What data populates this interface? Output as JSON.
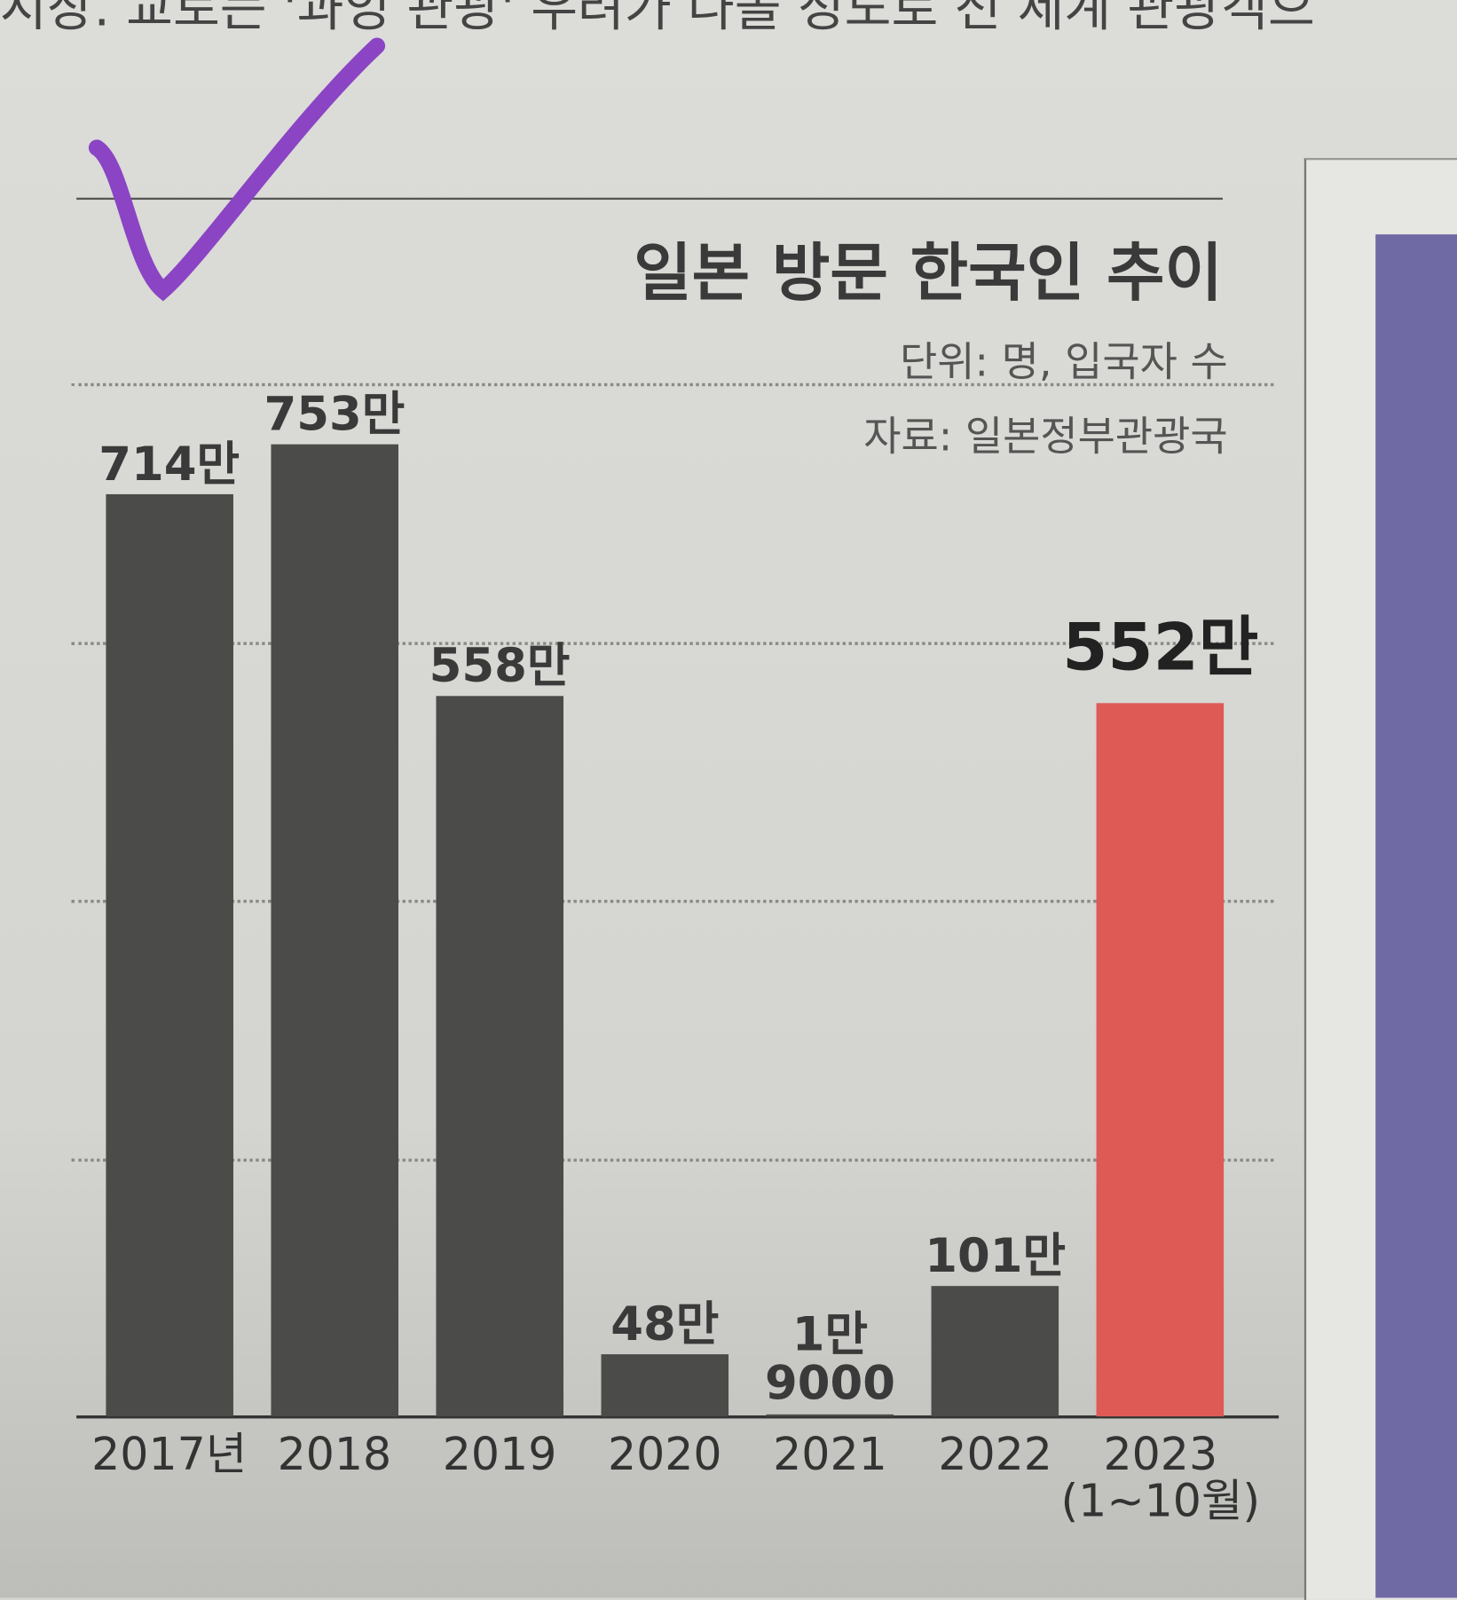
{
  "article_snippet": "시장. 교토는 '과잉 관광' 우려가 나올 정도로 전 세계 관광객으",
  "chart_data": {
    "type": "bar",
    "title": "일본 방문 한국인 추이",
    "subtitle": [
      "단위: 명, 입국자 수",
      "자료: 일본정부관광국"
    ],
    "categories": [
      "2017년",
      "2018",
      "2019",
      "2020",
      "2021",
      "2022",
      "2023\n(1~10월)"
    ],
    "values": [
      714,
      753,
      558,
      48,
      1.9,
      101,
      552
    ],
    "value_labels": [
      "714만",
      "753만",
      "558만",
      "48만",
      "1만\n9000",
      "101만",
      "552만"
    ],
    "colors": [
      "#4b4b49",
      "#4b4b49",
      "#4b4b49",
      "#4b4b49",
      "#4b4b49",
      "#4b4b49",
      "#de5a55"
    ],
    "ylim": [
      0,
      800
    ],
    "gridlines": [
      200,
      400,
      600,
      800
    ]
  }
}
